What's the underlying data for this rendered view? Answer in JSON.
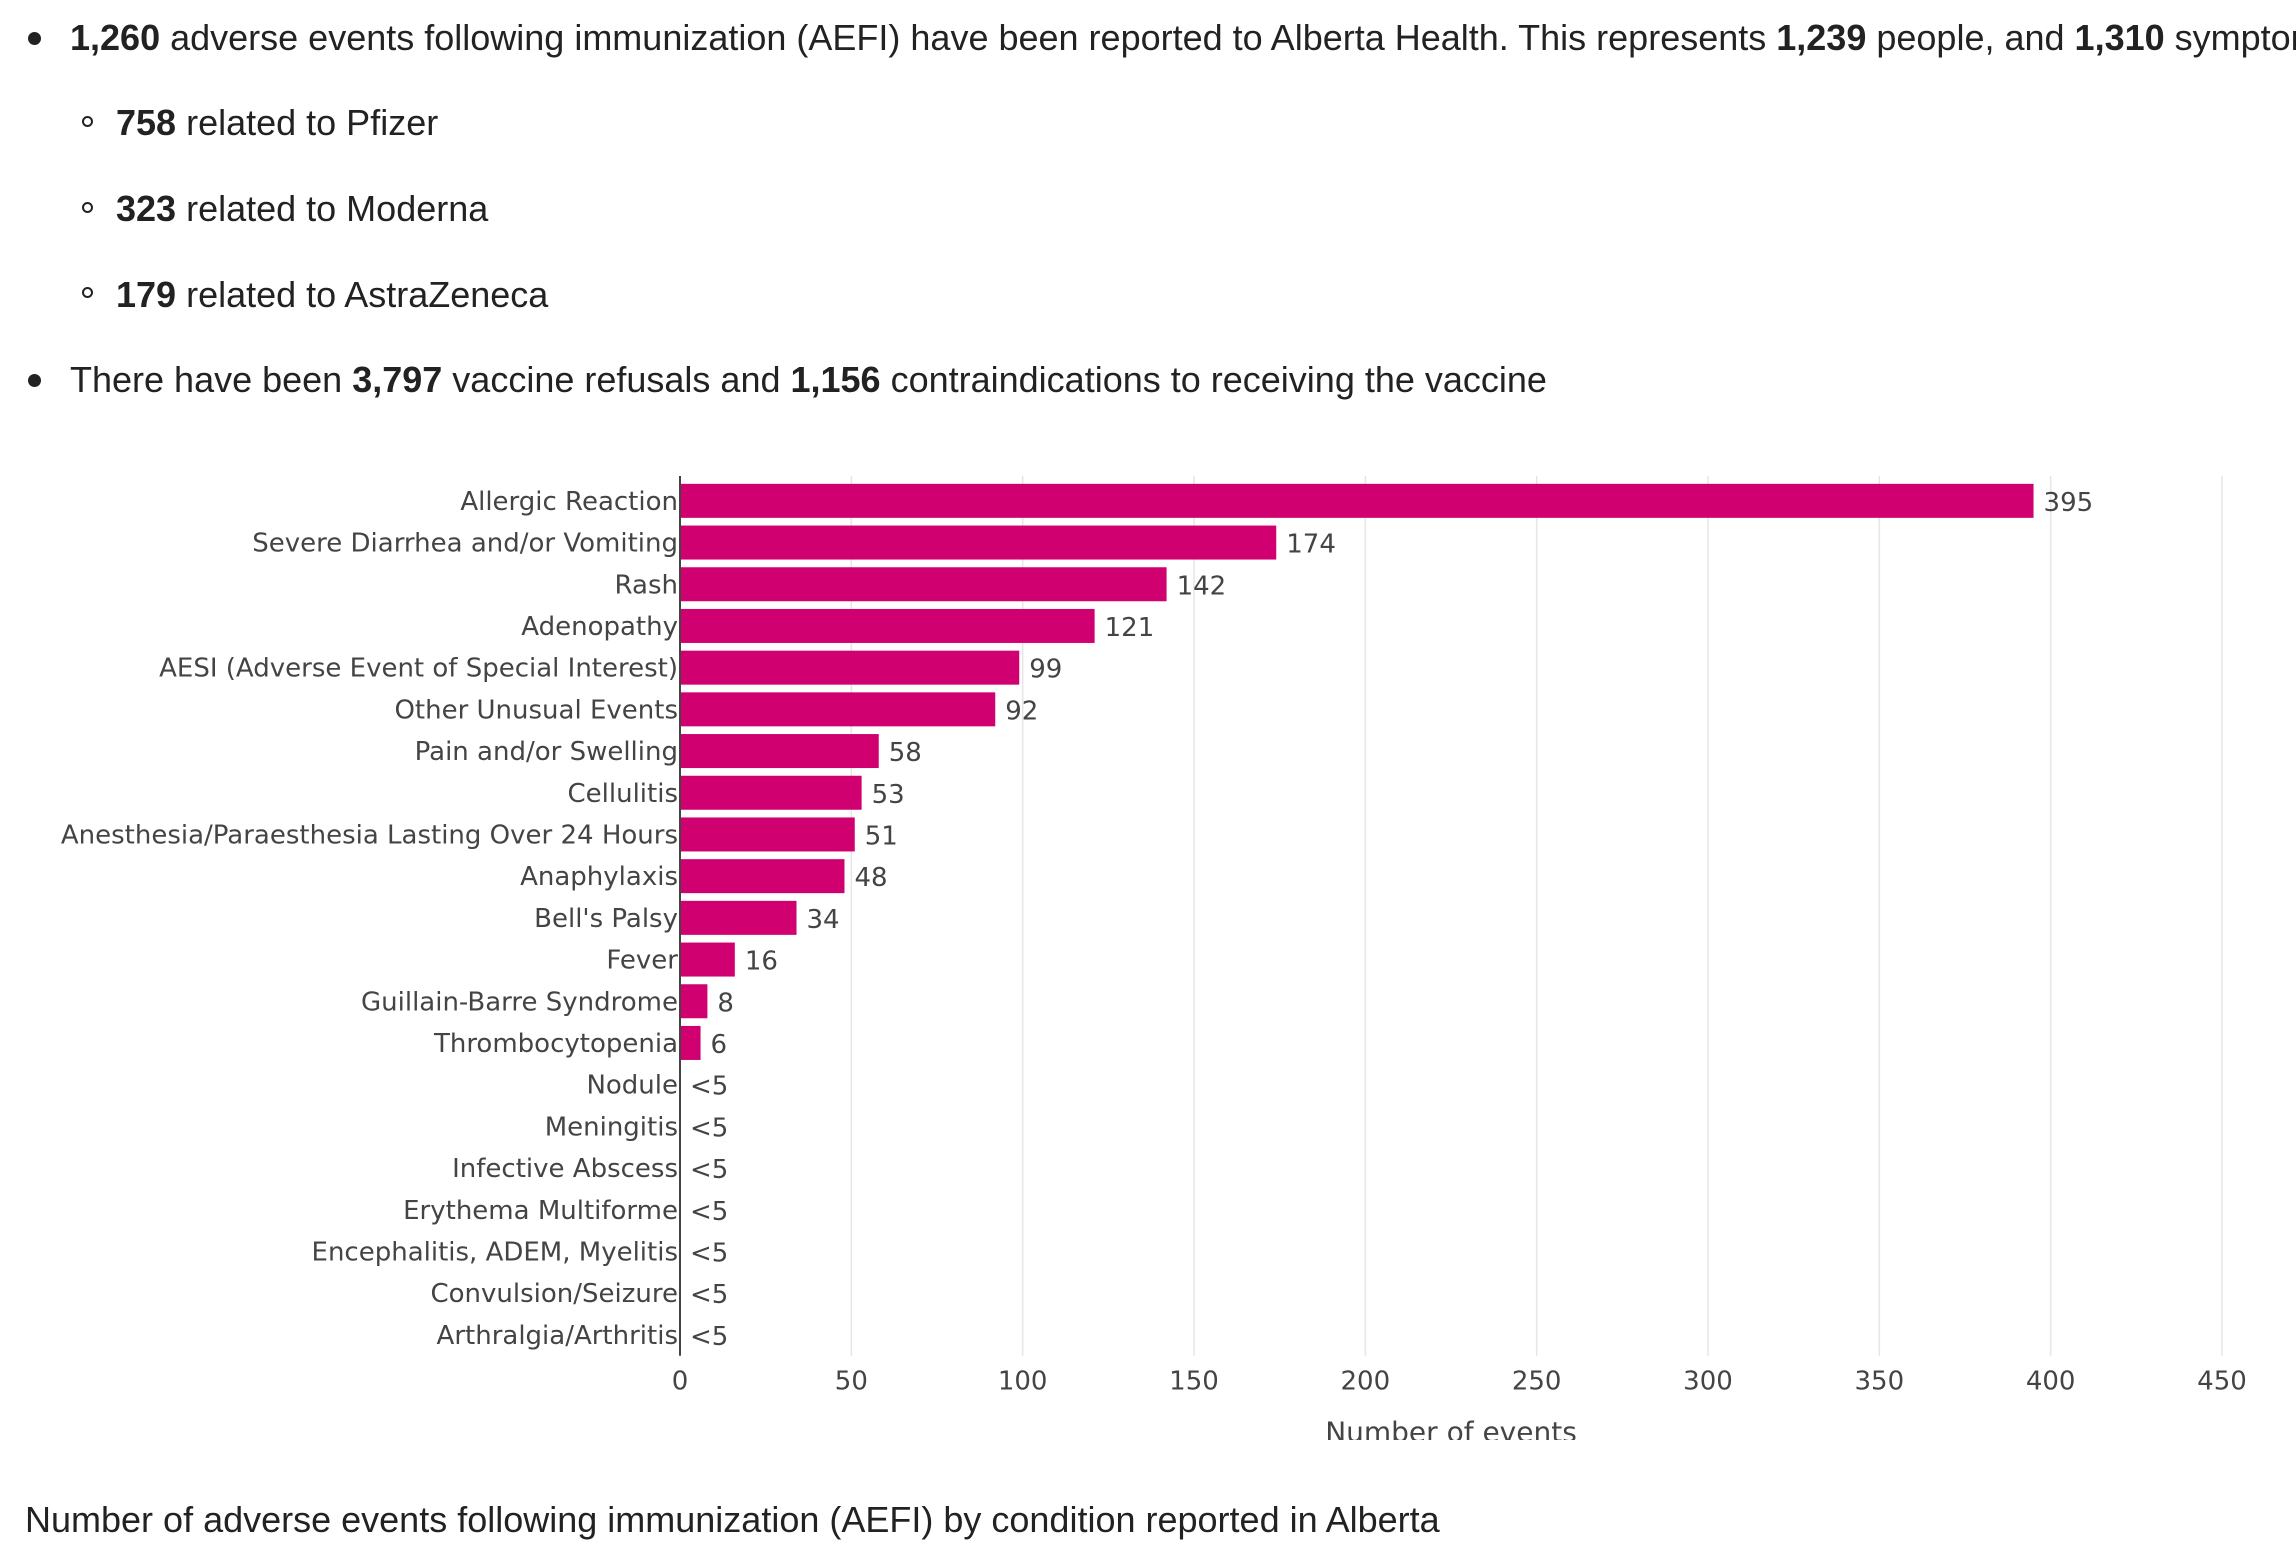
{
  "summary": {
    "line1": {
      "n1": "1,260",
      "t1": " adverse events following immunization (AEFI) have been reported to Alberta Health. This represents ",
      "n2": "1,239",
      "t2": " people, and ",
      "n3": "1,310",
      "t3": " symptoms."
    },
    "sub": [
      {
        "n": "758",
        "t": " related to Pfizer"
      },
      {
        "n": "323",
        "t": " related to Moderna"
      },
      {
        "n": "179",
        "t": " related to AstraZeneca"
      }
    ],
    "line2": {
      "t0": "There have been ",
      "n1": "3,797",
      "t1": " vaccine refusals and ",
      "n2": "1,156",
      "t2": " contraindications to receiving the vaccine"
    }
  },
  "caption": "Number of adverse events following immunization (AEFI) by condition reported in Alberta",
  "chart_data": {
    "type": "bar",
    "orientation": "horizontal",
    "categories": [
      "Allergic Reaction",
      "Severe Diarrhea and/or Vomiting",
      "Rash",
      "Adenopathy",
      "AESI (Adverse Event of Special Interest)",
      "Other Unusual Events",
      "Pain and/or Swelling",
      "Cellulitis",
      "Anesthesia/Paraesthesia Lasting Over 24 Hours",
      "Anaphylaxis",
      "Bell's Palsy",
      "Fever",
      "Guillain-Barre Syndrome",
      "Thrombocytopenia",
      "Nodule",
      "Meningitis",
      "Infective Abscess",
      "Erythema Multiforme",
      "Encephalitis, ADEM, Myelitis",
      "Convulsion/Seizure",
      "Arthralgia/Arthritis"
    ],
    "values": [
      395,
      174,
      142,
      121,
      99,
      92,
      58,
      53,
      51,
      48,
      34,
      16,
      8,
      6,
      0,
      0,
      0,
      0,
      0,
      0,
      0
    ],
    "data_labels": [
      "395",
      "174",
      "142",
      "121",
      "99",
      "92",
      "58",
      "53",
      "51",
      "48",
      "34",
      "16",
      "8",
      "6",
      "<5",
      "<5",
      "<5",
      "<5",
      "<5",
      "<5",
      "<5"
    ],
    "xlabel": "Number of events",
    "ylabel": "",
    "xlim": [
      0,
      450
    ],
    "xticks": [
      0,
      50,
      100,
      150,
      200,
      250,
      300,
      350,
      400,
      450
    ],
    "grid": "vertical",
    "bar_color": "#d10070"
  }
}
